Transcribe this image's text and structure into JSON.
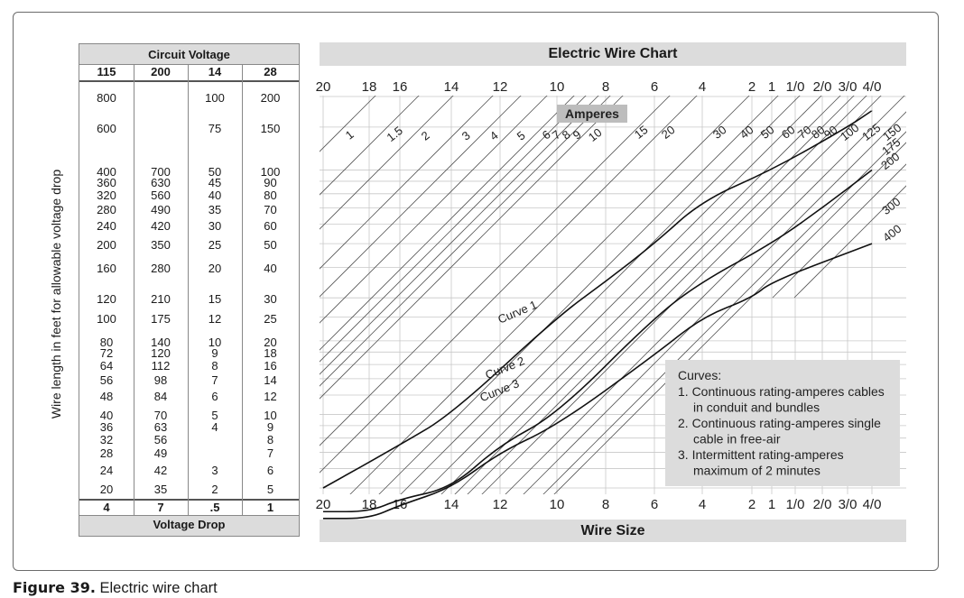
{
  "caption": {
    "label": "Figure 39.",
    "text": " Electric wire chart"
  },
  "y_axis_label": "Wire length in feet for allowable voltage drop",
  "voltage_table": {
    "title": "Circuit Voltage",
    "footer": "Voltage Drop",
    "columns": [
      "115",
      "200",
      "14",
      "28"
    ],
    "voltage_drops": [
      "4",
      "7",
      ".5",
      "1"
    ],
    "rows": [
      [
        "800",
        "",
        "100",
        "200"
      ],
      [
        "600",
        "",
        "75",
        "150"
      ],
      [
        "400",
        "700",
        "50",
        "100"
      ],
      [
        "360",
        "630",
        "45",
        "90"
      ],
      [
        "320",
        "560",
        "40",
        "80"
      ],
      [
        "280",
        "490",
        "35",
        "70"
      ],
      [
        "240",
        "420",
        "30",
        "60"
      ],
      [
        "200",
        "350",
        "25",
        "50"
      ],
      [
        "160",
        "280",
        "20",
        "40"
      ],
      [
        "120",
        "210",
        "15",
        "30"
      ],
      [
        "100",
        "175",
        "12",
        "25"
      ],
      [
        "80",
        "140",
        "10",
        "20"
      ],
      [
        "72",
        "120",
        "9",
        "18"
      ],
      [
        "64",
        "112",
        "8",
        "16"
      ],
      [
        "56",
        "98",
        "7",
        "14"
      ],
      [
        "48",
        "84",
        "6",
        "12"
      ],
      [
        "40",
        "70",
        "5",
        "10"
      ],
      [
        "36",
        "63",
        "4",
        "9"
      ],
      [
        "32",
        "56",
        "",
        "8"
      ],
      [
        "28",
        "49",
        "",
        "7"
      ],
      [
        "24",
        "42",
        "3",
        "6"
      ],
      [
        "20",
        "35",
        "2",
        "5"
      ]
    ]
  },
  "chart_data": {
    "type": "line",
    "title": "Electric Wire Chart",
    "xlabel": "Wire Size",
    "ylabel": "Wire length in feet for allowable voltage drop",
    "x_ticks": [
      "20",
      "18",
      "16",
      "14",
      "12",
      "10",
      "8",
      "6",
      "4",
      "2",
      "1",
      "1/0",
      "2/0",
      "3/0",
      "4/0"
    ],
    "y_scale": "log",
    "ampere_title": "Amperes",
    "ampere_lines": [
      "1",
      "1.5",
      "2",
      "3",
      "4",
      "5",
      "6",
      "7",
      "8",
      "9",
      "10",
      "15",
      "20",
      "30",
      "40",
      "50",
      "60",
      "70",
      "80",
      "90",
      "100",
      "125",
      "150",
      "175",
      "200",
      "300",
      "400"
    ],
    "series": [
      {
        "name": "Curve 1",
        "points": [
          [
            "20",
            20
          ],
          [
            "16",
            30
          ],
          [
            "14",
            40
          ],
          [
            "10",
            100
          ],
          [
            "8",
            140
          ],
          [
            "6",
            200
          ],
          [
            "4",
            300
          ],
          [
            "1",
            400
          ],
          [
            "3/0",
            600
          ],
          [
            "4/0",
            700
          ]
        ]
      },
      {
        "name": "Curve 2",
        "points": [
          [
            "20",
            16
          ],
          [
            "18",
            16
          ],
          [
            "16",
            18
          ],
          [
            "14",
            20
          ],
          [
            "12",
            30
          ],
          [
            "10",
            40
          ],
          [
            "6",
            100
          ],
          [
            "4",
            140
          ],
          [
            "1",
            200
          ],
          [
            "2/0",
            280
          ],
          [
            "4/0",
            400
          ]
        ]
      },
      {
        "name": "Curve 3",
        "points": [
          [
            "20",
            15
          ],
          [
            "18",
            15
          ],
          [
            "16",
            17
          ],
          [
            "14",
            20
          ],
          [
            "12",
            28
          ],
          [
            "10",
            36
          ],
          [
            "6",
            70
          ],
          [
            "4",
            100
          ],
          [
            "2",
            120
          ],
          [
            "1",
            140
          ],
          [
            "4/0",
            200
          ]
        ]
      }
    ],
    "legend": {
      "title": "Curves:",
      "items": [
        [
          "1. Continuous rating-amperes cables",
          "in conduit and bundles"
        ],
        [
          "2. Continuous rating-amperes single",
          "cable in free-air"
        ],
        [
          "3. Intermittent rating-amperes",
          "maximum of 2 minutes"
        ]
      ]
    },
    "grid": true
  }
}
